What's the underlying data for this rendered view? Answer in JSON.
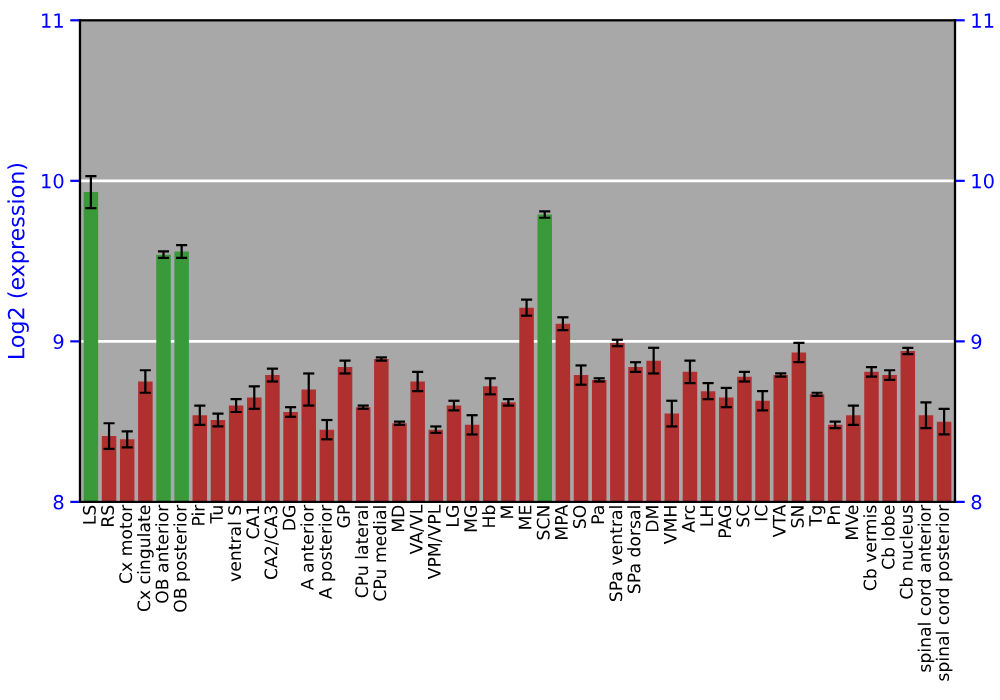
{
  "chart_data": {
    "type": "bar",
    "ylabel": "Log2 (expression)",
    "categories": [
      "LS",
      "RS",
      "Cx motor",
      "Cx cingulate",
      "OB anterior",
      "OB posterior",
      "Pir",
      "Tu",
      "ventral S",
      "CA1",
      "CA2/CA3",
      "DG",
      "A anterior",
      "A posterior",
      "GP",
      "CPu lateral",
      "CPu medial",
      "MD",
      "VA/VL",
      "VPM/VPL",
      "LG",
      "MG",
      "Hb",
      "M",
      "ME",
      "SCN",
      "MPA",
      "SO",
      "Pa",
      "SPa ventral",
      "SPa dorsal",
      "DM",
      "VMH",
      "Arc",
      "LH",
      "PAG",
      "SC",
      "IC",
      "VTA",
      "SN",
      "Tg",
      "Pn",
      "MVe",
      "Cb vermis",
      "Cb lobe",
      "Cb nucleus",
      "spinal cord anterior",
      "spinal cord posterior"
    ],
    "values": [
      9.93,
      8.41,
      8.39,
      8.75,
      9.54,
      9.56,
      8.54,
      8.51,
      8.6,
      8.65,
      8.79,
      8.56,
      8.7,
      8.45,
      8.84,
      8.59,
      8.89,
      8.49,
      8.75,
      8.45,
      8.6,
      8.48,
      8.72,
      8.62,
      9.21,
      9.79,
      9.11,
      8.79,
      8.76,
      8.99,
      8.84,
      8.88,
      8.55,
      8.81,
      8.69,
      8.65,
      8.78,
      8.63,
      8.79,
      8.93,
      8.67,
      8.48,
      8.54,
      8.81,
      8.79,
      8.94,
      8.54,
      8.5
    ],
    "errors": [
      0.1,
      0.08,
      0.05,
      0.07,
      0.02,
      0.04,
      0.06,
      0.04,
      0.04,
      0.07,
      0.04,
      0.03,
      0.1,
      0.06,
      0.04,
      0.01,
      0.01,
      0.01,
      0.06,
      0.02,
      0.03,
      0.06,
      0.05,
      0.02,
      0.05,
      0.02,
      0.04,
      0.06,
      0.01,
      0.02,
      0.03,
      0.08,
      0.08,
      0.07,
      0.05,
      0.06,
      0.03,
      0.06,
      0.01,
      0.06,
      0.01,
      0.02,
      0.06,
      0.03,
      0.03,
      0.02,
      0.08,
      0.08
    ],
    "colors": [
      "#3a9a3a",
      "#b03030",
      "#b03030",
      "#b03030",
      "#3a9a3a",
      "#3a9a3a",
      "#b03030",
      "#b03030",
      "#b03030",
      "#b03030",
      "#b03030",
      "#b03030",
      "#b03030",
      "#b03030",
      "#b03030",
      "#b03030",
      "#b03030",
      "#b03030",
      "#b03030",
      "#b03030",
      "#b03030",
      "#b03030",
      "#b03030",
      "#b03030",
      "#b03030",
      "#3a9a3a",
      "#b03030",
      "#b03030",
      "#b03030",
      "#b03030",
      "#b03030",
      "#b03030",
      "#b03030",
      "#b03030",
      "#b03030",
      "#b03030",
      "#b03030",
      "#b03030",
      "#b03030",
      "#b03030",
      "#b03030",
      "#b03030",
      "#b03030",
      "#b03030",
      "#b03030",
      "#b03030",
      "#b03030",
      "#b03030"
    ],
    "ylim": [
      8,
      11
    ],
    "yticks": [
      8,
      9,
      10,
      11
    ],
    "y2lim": [
      8,
      11
    ],
    "y2ticks": [
      8,
      9,
      10,
      11
    ],
    "grid": "y"
  }
}
